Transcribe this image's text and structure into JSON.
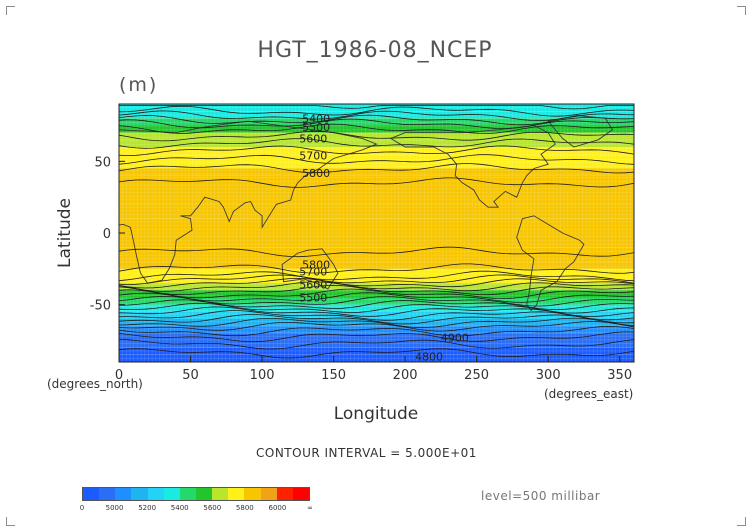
{
  "chart_data": {
    "type": "heatmap",
    "title": "HGT_1986-08_NCEP",
    "units_label": "(m)",
    "xlabel": "Longitude",
    "ylabel": "Latitude",
    "x_unit_label": "(degrees_east)",
    "y_unit_label": "(degrees_north)",
    "xlim": [
      0,
      360
    ],
    "ylim": [
      -90,
      90
    ],
    "x_ticks": [
      0,
      50,
      100,
      150,
      200,
      250,
      300,
      350
    ],
    "y_ticks": [
      -50,
      0,
      50
    ],
    "contour_interval_text": "CONTOUR INTERVAL = 5.000E+01",
    "level_text": "level=500 millibar",
    "contour_labels": [
      {
        "text": "5400",
        "x": 128,
        "y": 80
      },
      {
        "text": "5500",
        "x": 128,
        "y": 74
      },
      {
        "text": "5600",
        "x": 126,
        "y": 66
      },
      {
        "text": "5700",
        "x": 126,
        "y": 54
      },
      {
        "text": "5800",
        "x": 128,
        "y": 42
      },
      {
        "text": "5800",
        "x": 128,
        "y": -22
      },
      {
        "text": "5700",
        "x": 126,
        "y": -27
      },
      {
        "text": "5600",
        "x": 126,
        "y": -36
      },
      {
        "text": "5500",
        "x": 126,
        "y": -45
      },
      {
        "text": "4900",
        "x": 225,
        "y": -73
      },
      {
        "text": "4800",
        "x": 207,
        "y": -86
      }
    ],
    "latitude_profile": [
      {
        "lat": 90,
        "value": 5300
      },
      {
        "lat": 85,
        "value": 5350
      },
      {
        "lat": 80,
        "value": 5430
      },
      {
        "lat": 75,
        "value": 5520
      },
      {
        "lat": 70,
        "value": 5580
      },
      {
        "lat": 65,
        "value": 5620
      },
      {
        "lat": 60,
        "value": 5680
      },
      {
        "lat": 55,
        "value": 5720
      },
      {
        "lat": 50,
        "value": 5760
      },
      {
        "lat": 45,
        "value": 5800
      },
      {
        "lat": 40,
        "value": 5840
      },
      {
        "lat": 30,
        "value": 5860
      },
      {
        "lat": 20,
        "value": 5870
      },
      {
        "lat": 10,
        "value": 5870
      },
      {
        "lat": 0,
        "value": 5870
      },
      {
        "lat": -10,
        "value": 5860
      },
      {
        "lat": -20,
        "value": 5830
      },
      {
        "lat": -25,
        "value": 5800
      },
      {
        "lat": -30,
        "value": 5750
      },
      {
        "lat": -35,
        "value": 5650
      },
      {
        "lat": -40,
        "value": 5550
      },
      {
        "lat": -45,
        "value": 5450
      },
      {
        "lat": -50,
        "value": 5350
      },
      {
        "lat": -55,
        "value": 5250
      },
      {
        "lat": -60,
        "value": 5150
      },
      {
        "lat": -65,
        "value": 5050
      },
      {
        "lat": -70,
        "value": 4980
      },
      {
        "lat": -75,
        "value": 4920
      },
      {
        "lat": -80,
        "value": 4880
      },
      {
        "lat": -85,
        "value": 4840
      },
      {
        "lat": -90,
        "value": 4820
      }
    ],
    "color_legend": {
      "labels": [
        "0",
        "5000",
        "5200",
        "5400",
        "5600",
        "5800",
        "6000",
        "∞"
      ],
      "segments": [
        {
          "from": 0,
          "to": 4900,
          "color": "#1a5cff"
        },
        {
          "from": 4900,
          "to": 5000,
          "color": "#2a6ef5"
        },
        {
          "from": 5000,
          "to": 5100,
          "color": "#1e8fff"
        },
        {
          "from": 5100,
          "to": 5200,
          "color": "#1fb3f0"
        },
        {
          "from": 5200,
          "to": 5300,
          "color": "#22d3f5"
        },
        {
          "from": 5300,
          "to": 5400,
          "color": "#19eae2"
        },
        {
          "from": 5400,
          "to": 5500,
          "color": "#24d86a"
        },
        {
          "from": 5500,
          "to": 5600,
          "color": "#22c52b"
        },
        {
          "from": 5600,
          "to": 5700,
          "color": "#b7e62d"
        },
        {
          "from": 5700,
          "to": 5800,
          "color": "#fff01a"
        },
        {
          "from": 5800,
          "to": 5900,
          "color": "#f7c600"
        },
        {
          "from": 5900,
          "to": 6000,
          "color": "#f2a216"
        },
        {
          "from": 6000,
          "to": 6100,
          "color": "#ff2200"
        },
        {
          "from": 6100,
          "to": 999999,
          "color": "#ff0000"
        }
      ]
    }
  }
}
